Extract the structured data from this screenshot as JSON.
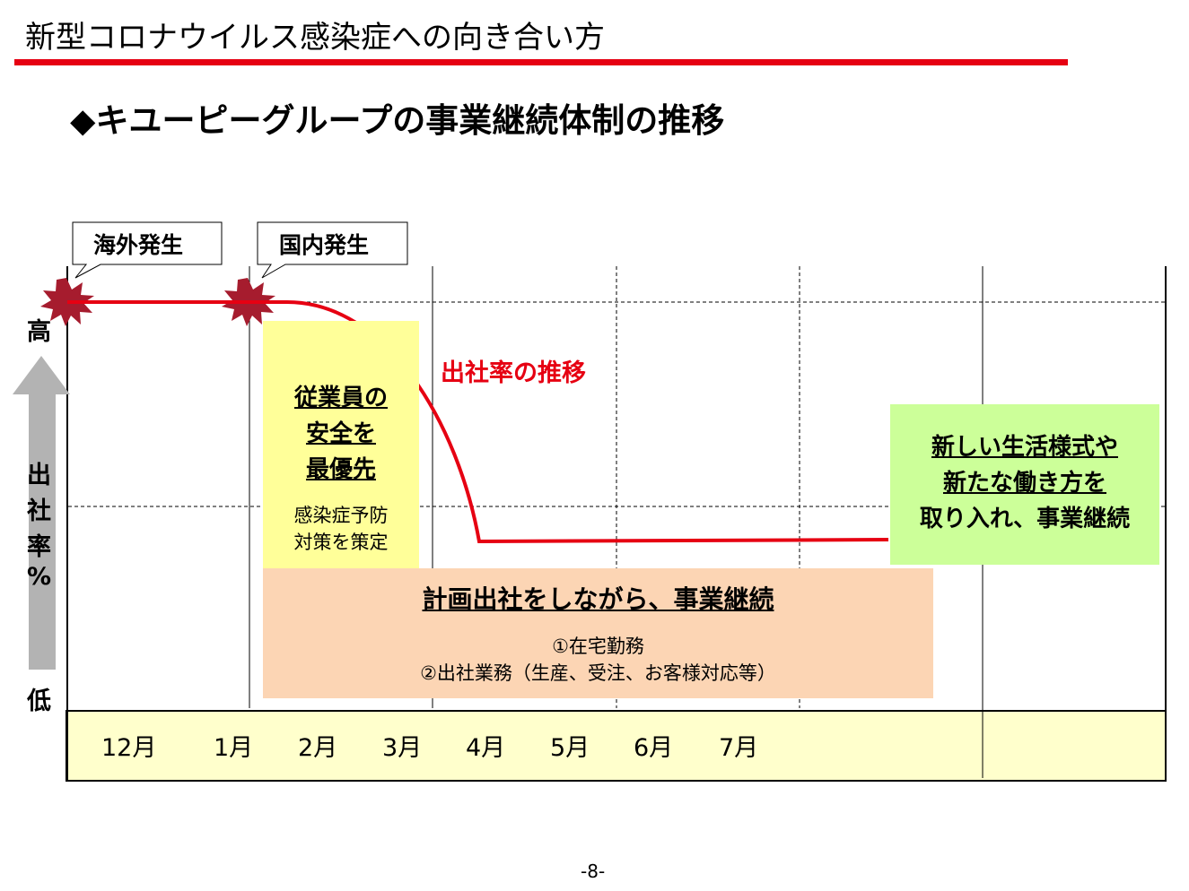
{
  "header": {
    "title": "新型コロナウイルス感染症への向き合い方",
    "subtitle": "◆キユーピーグループの事業継続体制の推移"
  },
  "colors": {
    "accent_red": "#e60012",
    "safety_box": "#ffff99",
    "plan_box": "#fcd5b4",
    "newstyle_box": "#ccff99",
    "month_band": "#ffffcc",
    "explosion": "#a61c2e"
  },
  "chart": {
    "y_axis": {
      "high": "高",
      "low": "低",
      "label_chars": [
        "出",
        "社",
        "率",
        "%"
      ]
    },
    "months": [
      "12月",
      "1月",
      "2月",
      "3月",
      "4月",
      "5月",
      "6月",
      "7月"
    ],
    "events": [
      {
        "label": "海外発生",
        "icon": "explosion-icon"
      },
      {
        "label": "国内発生",
        "icon": "explosion-icon"
      }
    ],
    "trend_label": "出社率の推移"
  },
  "boxes": {
    "safety": {
      "head_lines": [
        "従業員の",
        "安全を",
        "最優先"
      ],
      "sub_lines": [
        "感染症予防",
        "対策を策定"
      ]
    },
    "plan": {
      "head": "計画出社をしながら、事業継続",
      "sub_lines": [
        "①在宅勤務",
        "②出社業務（生産、受注、お客様対応等）"
      ]
    },
    "new_style": {
      "lines": [
        "新しい生活様式や",
        "新たな働き方を",
        "取り入れ、事業継続"
      ]
    }
  },
  "footer": {
    "page_number": "-8-"
  }
}
